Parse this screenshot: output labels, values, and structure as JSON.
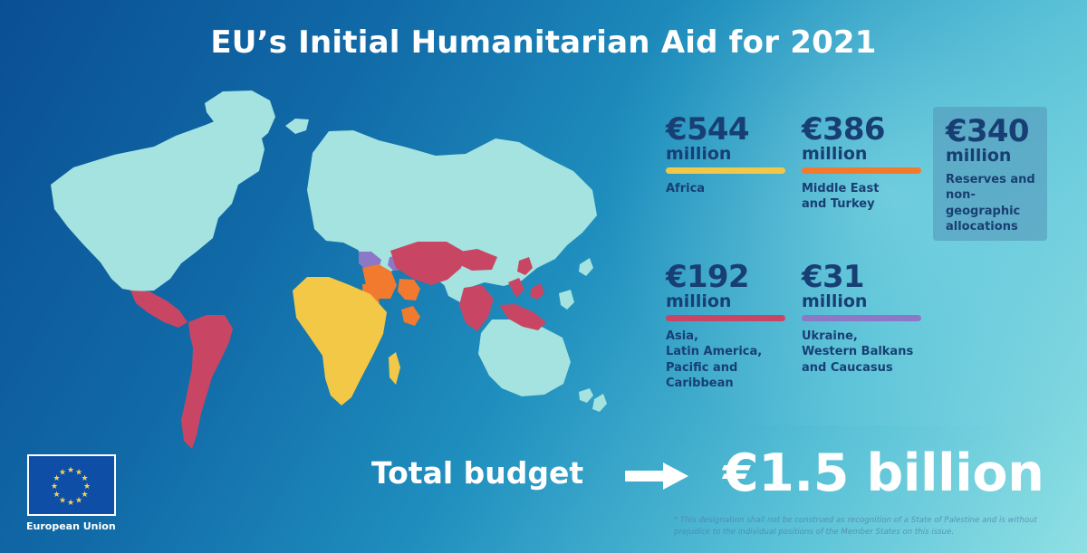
{
  "title": "EU’s Initial Humanitarian Aid for 2021",
  "stats": [
    {
      "amount": "€544",
      "unit": "million",
      "label": "Africa",
      "color": "#f2c846"
    },
    {
      "amount": "€386",
      "unit": "million",
      "label": "Middle East\nand Turkey",
      "color": "#f17a2e"
    },
    {
      "amount": "€340",
      "unit": "million",
      "label": "Reserves and\nnon-geographic\nallocations",
      "color": "#569abc"
    },
    {
      "amount": "€192",
      "unit": "million",
      "label": "Asia,\nLatin America,\nPacific and\nCaribbean",
      "color": "#c84663"
    },
    {
      "amount": "€31",
      "unit": "million",
      "label": "Ukraine,\nWestern Balkans\nand Caucasus",
      "color": "#8d78c7"
    }
  ],
  "total": {
    "label": "Total budget",
    "value": "€1.5 billion"
  },
  "eu_label": "European Union",
  "footnote": "* This designation shall not be construed as recognition of a State of Palestine and is without prejudice to the individual positions of the Member States on this issue.",
  "icons": {
    "arrow": "arrow-right-icon",
    "flag": "eu-flag-icon",
    "map": "world-map"
  },
  "colors": {
    "land": "#a4e3df",
    "africa": "#f2c846",
    "middle_east": "#f17a2e",
    "asia_latam": "#c84663",
    "ukraine_balkans": "#8d78c7",
    "title": "#ffffff",
    "stat_text": "#183f74"
  }
}
